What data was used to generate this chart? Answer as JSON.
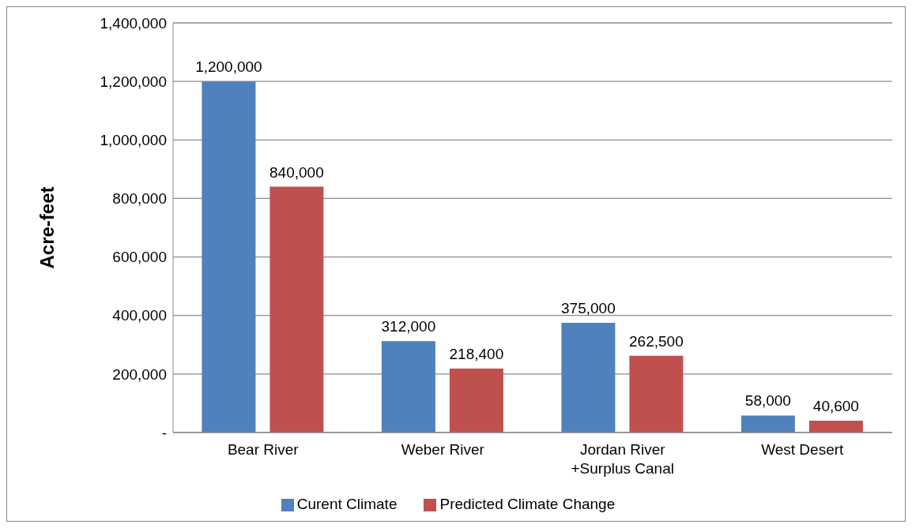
{
  "chart_data": {
    "type": "bar",
    "ylabel": "Acre-feet",
    "categories": [
      "Bear River",
      "Weber River",
      "Jordan River\n+Surplus Canal",
      "West Desert"
    ],
    "series": [
      {
        "name": "Curent Climate",
        "color": "#4f81bd",
        "values": [
          1200000,
          312000,
          375000,
          58000
        ],
        "value_labels": [
          "1,200,000",
          "312,000",
          "375,000",
          "58,000"
        ]
      },
      {
        "name": "Predicted Climate Change",
        "color": "#c0504d",
        "values": [
          840000,
          218400,
          262500,
          40600
        ],
        "value_labels": [
          "840,000",
          "218,400",
          "262,500",
          "40,600"
        ]
      }
    ],
    "ylim": [
      0,
      1400000
    ],
    "yticks": [
      {
        "value": 0,
        "label": "-"
      },
      {
        "value": 200000,
        "label": "200,000"
      },
      {
        "value": 400000,
        "label": "400,000"
      },
      {
        "value": 600000,
        "label": "600,000"
      },
      {
        "value": 800000,
        "label": "800,000"
      },
      {
        "value": 1000000,
        "label": "1,000,000"
      },
      {
        "value": 1200000,
        "label": "1,200,000"
      },
      {
        "value": 1400000,
        "label": "1,400,000"
      }
    ],
    "grid": "y",
    "legend": "bottom"
  }
}
